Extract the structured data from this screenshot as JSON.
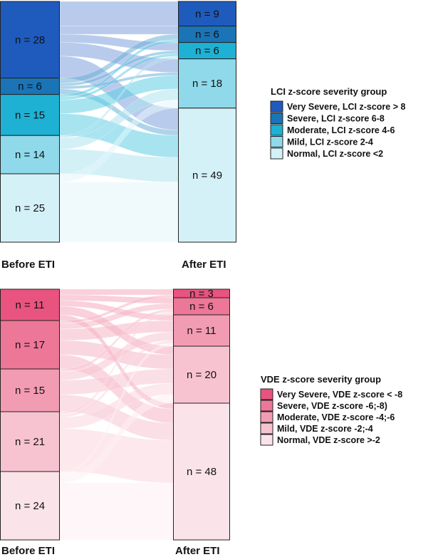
{
  "chart_data": [
    {
      "type": "sankey",
      "id": "lci",
      "xlabel_left": "Before ETI",
      "xlabel_right": "After ETI",
      "legend_title": "LCI z-score severity group",
      "categories": [
        "Very Severe, LCI z-score > 8",
        "Severe, LCI z-score 6-8",
        "Moderate, LCI z-score 4-6",
        "Mild, LCI z-score 2-4",
        "Normal, LCI z-score <2"
      ],
      "colors": [
        "#1f5bbd",
        "#1a74b6",
        "#1eb1d4",
        "#8fd9ea",
        "#d4f1f8"
      ],
      "ribbon_colors": [
        "#7fa0dd",
        "#6bb0d8",
        "#5fcde4",
        "#aee4f0",
        "#e3f6fb"
      ],
      "before": [
        28,
        6,
        15,
        14,
        25
      ],
      "after": [
        9,
        6,
        6,
        18,
        49
      ],
      "before_labels": [
        "n = 28",
        "n = 6",
        "n = 15",
        "n = 14",
        "n = 25"
      ],
      "after_labels": [
        "n = 9",
        "n = 6",
        "n = 6",
        "n = 18",
        "n = 49"
      ],
      "flows": [
        [
          9,
          3,
          3,
          5,
          8
        ],
        [
          0,
          2,
          1,
          1,
          2
        ],
        [
          0,
          1,
          1,
          5,
          8
        ],
        [
          0,
          0,
          1,
          4,
          9
        ],
        [
          0,
          0,
          0,
          3,
          22
        ]
      ]
    },
    {
      "type": "sankey",
      "id": "vde",
      "xlabel_left": "Before ETI",
      "xlabel_right": "After ETI",
      "legend_title": "VDE z-score severity group",
      "categories": [
        "Very Severe, VDE z-score < -8",
        "Severe, VDE z-score -6;-8)",
        "Moderate, VDE z-score -4;-6",
        "Mild, VDE z-score -2;-4",
        "Normal, VDE z-score >-2"
      ],
      "colors": [
        "#e8547f",
        "#ed7796",
        "#f29cb3",
        "#f7c3d1",
        "#fbe3ea"
      ],
      "ribbon_colors": [
        "#f4a9bd",
        "#f6b6c7",
        "#f8c5d2",
        "#fad6df",
        "#fdeef2"
      ],
      "before": [
        11,
        17,
        15,
        21,
        24
      ],
      "after": [
        3,
        6,
        11,
        20,
        48
      ],
      "before_labels": [
        "n = 11",
        "n = 17",
        "n = 15",
        "n = 21",
        "n = 24"
      ],
      "after_labels": [
        "n = 3",
        "n = 6",
        "n = 11",
        "n = 20",
        "n = 48"
      ],
      "flows": [
        [
          2,
          2,
          2,
          3,
          2
        ],
        [
          1,
          2,
          4,
          5,
          5
        ],
        [
          0,
          1,
          3,
          5,
          6
        ],
        [
          0,
          1,
          1,
          4,
          15
        ],
        [
          0,
          0,
          1,
          3,
          20
        ]
      ]
    }
  ]
}
